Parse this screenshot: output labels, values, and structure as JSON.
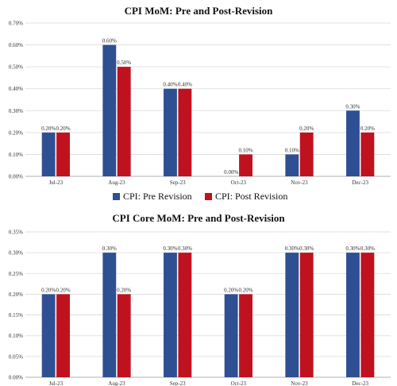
{
  "colors": {
    "pre": "#2F4F93",
    "post": "#C0111F"
  },
  "legend": {
    "pre": "CPI: Pre Revision",
    "post": "CPI: Post Revision"
  },
  "chart_data": [
    {
      "type": "bar",
      "title": "CPI MoM: Pre and Post-Revision",
      "categories": [
        "Jul-23",
        "Aug-23",
        "Sep-23",
        "Oct-23",
        "Nov-23",
        "Dec-23"
      ],
      "series": [
        {
          "name": "CPI: Pre Revision",
          "values": [
            0.2,
            0.6,
            0.4,
            0.0,
            0.1,
            0.3
          ],
          "labels": [
            "0.20%",
            "0.60%",
            "0.40%",
            "0.00%",
            "0.10%",
            "0.30%"
          ]
        },
        {
          "name": "CPI: Post Revision",
          "values": [
            0.2,
            0.5,
            0.4,
            0.1,
            0.2,
            0.2
          ],
          "labels": [
            "0.20%",
            "0.50%",
            "0.40%",
            "0.10%",
            "0.20%",
            "0.20%"
          ]
        }
      ],
      "ylim": [
        0,
        0.7
      ],
      "yticks": [
        "0.00%",
        "0.10%",
        "0.20%",
        "0.30%",
        "0.40%",
        "0.50%",
        "0.60%",
        "0.70%"
      ],
      "grid": true,
      "legend_position": "bottom"
    },
    {
      "type": "bar",
      "title": "CPI Core MoM: Pre and Post-Revision",
      "categories": [
        "Jul-23",
        "Aug-23",
        "Sep-23",
        "Oct-23",
        "Nov-23",
        "Dec-23"
      ],
      "series": [
        {
          "name": "CPI: Pre Revision",
          "values": [
            0.2,
            0.3,
            0.3,
            0.2,
            0.3,
            0.3
          ],
          "labels": [
            "0.20%",
            "0.30%",
            "0.30%",
            "0.20%",
            "0.30%",
            "0.30%"
          ]
        },
        {
          "name": "CPI: Post Revision",
          "values": [
            0.2,
            0.2,
            0.3,
            0.2,
            0.3,
            0.3
          ],
          "labels": [
            "0.20%",
            "0.20%",
            "0.30%",
            "0.20%",
            "0.30%",
            "0.30%"
          ]
        }
      ],
      "ylim": [
        0,
        0.35
      ],
      "yticks": [
        "0.00%",
        "0.05%",
        "0.10%",
        "0.15%",
        "0.20%",
        "0.25%",
        "0.30%",
        "0.35%"
      ],
      "grid": true
    }
  ]
}
